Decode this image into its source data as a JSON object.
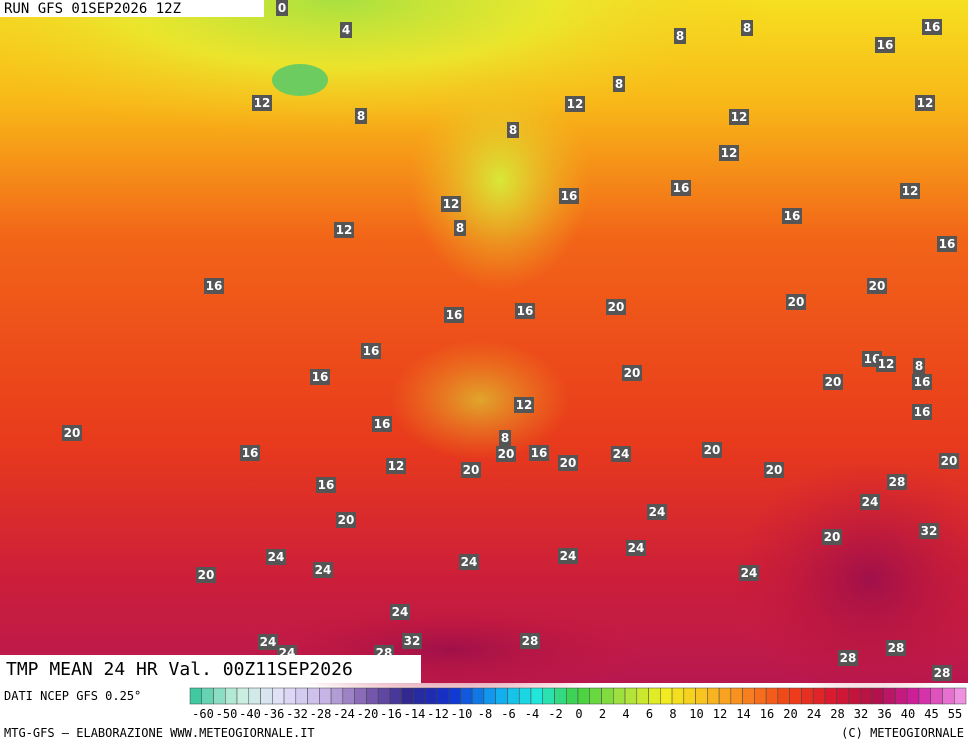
{
  "header": {
    "run": "RUN GFS 01SEP2026 12Z"
  },
  "map": {
    "labels": [
      "0",
      "4",
      "8",
      "8",
      "16",
      "16",
      "8",
      "12",
      "8",
      "12",
      "8",
      "12",
      "12",
      "12",
      "16",
      "16",
      "12",
      "12",
      "8",
      "12",
      "16",
      "16",
      "16",
      "20",
      "20",
      "20",
      "16",
      "16",
      "16",
      "16",
      "12",
      "8",
      "16",
      "20",
      "20",
      "16",
      "16",
      "12",
      "16",
      "20",
      "8",
      "20",
      "16",
      "20",
      "16",
      "24",
      "20",
      "12",
      "20",
      "20",
      "20",
      "16",
      "28",
      "24",
      "20",
      "24",
      "32",
      "20",
      "24",
      "24",
      "24",
      "24",
      "24",
      "20",
      "24",
      "24",
      "24",
      "32",
      "28",
      "24",
      "28",
      "28",
      "28",
      "28"
    ]
  },
  "title": "TMP MEAN 24 HR Val. 00Z11SEP2026",
  "source": "DATI NCEP GFS 0.25°",
  "colorbar": {
    "labels": [
      "-60",
      "-50",
      "-40",
      "-36",
      "-32",
      "-28",
      "-24",
      "-20",
      "-16",
      "-14",
      "-12",
      "-10",
      "-8",
      "-6",
      "-4",
      "-2",
      "0",
      "2",
      "4",
      "6",
      "8",
      "10",
      "12",
      "14",
      "16",
      "20",
      "24",
      "28",
      "32",
      "36",
      "40",
      "45",
      "55"
    ]
  },
  "footer": {
    "left": "MTG-GFS — ELABORAZIONE WWW.METEOGIORNALE.IT",
    "right": "(C) METEOGIORNALE"
  }
}
